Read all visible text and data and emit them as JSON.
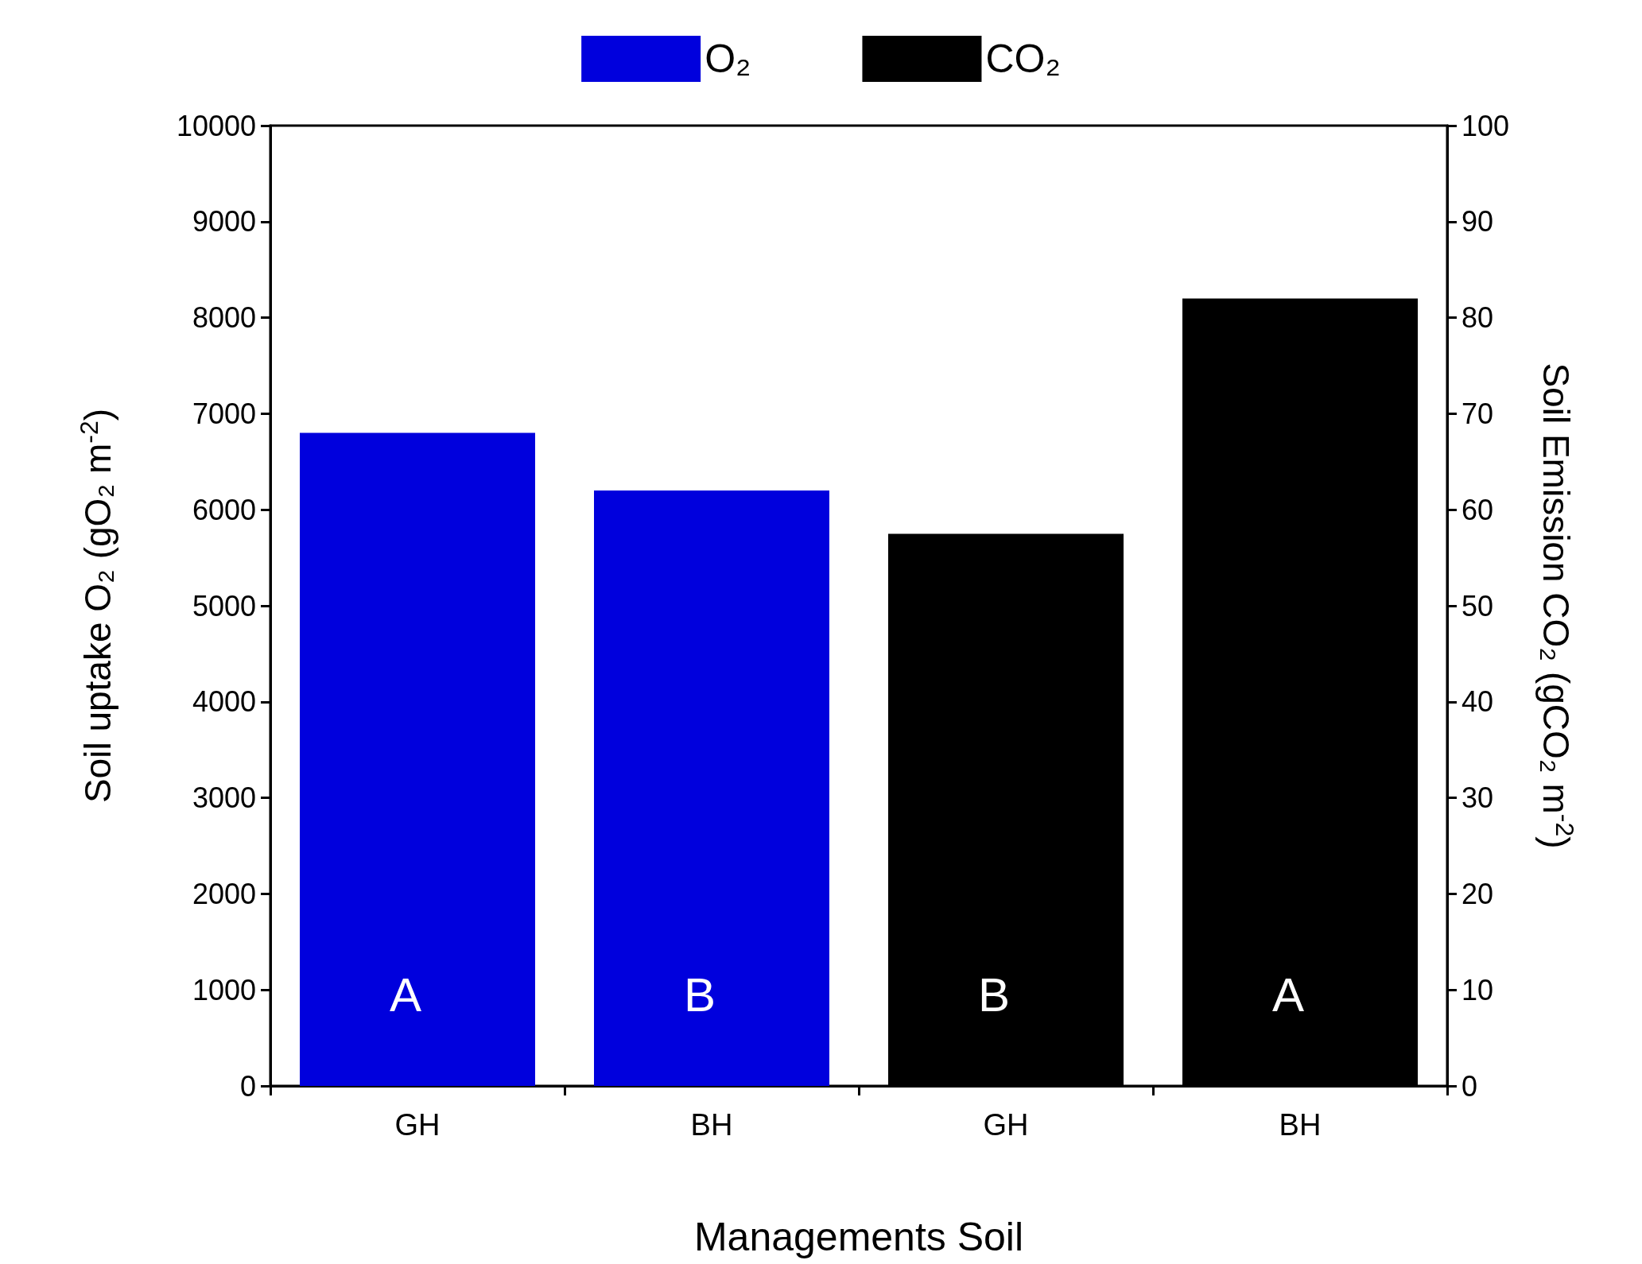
{
  "chart_data": {
    "type": "bar",
    "xlabel": "Managements Soil",
    "ylabel": "Soil uptake O₂ (gO₂ m$^{-2}$)",
    "y2label": "Soil Emission CO₂ (gCO₂ m$^{-2}$)",
    "categories": [
      "GH",
      "BH",
      "GH",
      "BH"
    ],
    "series": [
      {
        "name": "O₂",
        "color": "#0000dd",
        "values": [
          6800,
          6200,
          null,
          null
        ]
      },
      {
        "name": "CO₂",
        "color": "#000000",
        "axis": "y2",
        "values": [
          null,
          null,
          57.5,
          82
        ]
      }
    ],
    "ylim": [
      0,
      10000
    ],
    "yticks": [
      0,
      1000,
      2000,
      3000,
      4000,
      5000,
      6000,
      7000,
      8000,
      9000,
      10000
    ],
    "y2lim": [
      0,
      100
    ],
    "y2ticks": [
      0,
      10,
      20,
      30,
      40,
      50,
      60,
      70,
      80,
      90,
      100
    ],
    "annotations": [
      "A",
      "B",
      "B",
      "A"
    ],
    "legend": "top",
    "grid": false
  }
}
